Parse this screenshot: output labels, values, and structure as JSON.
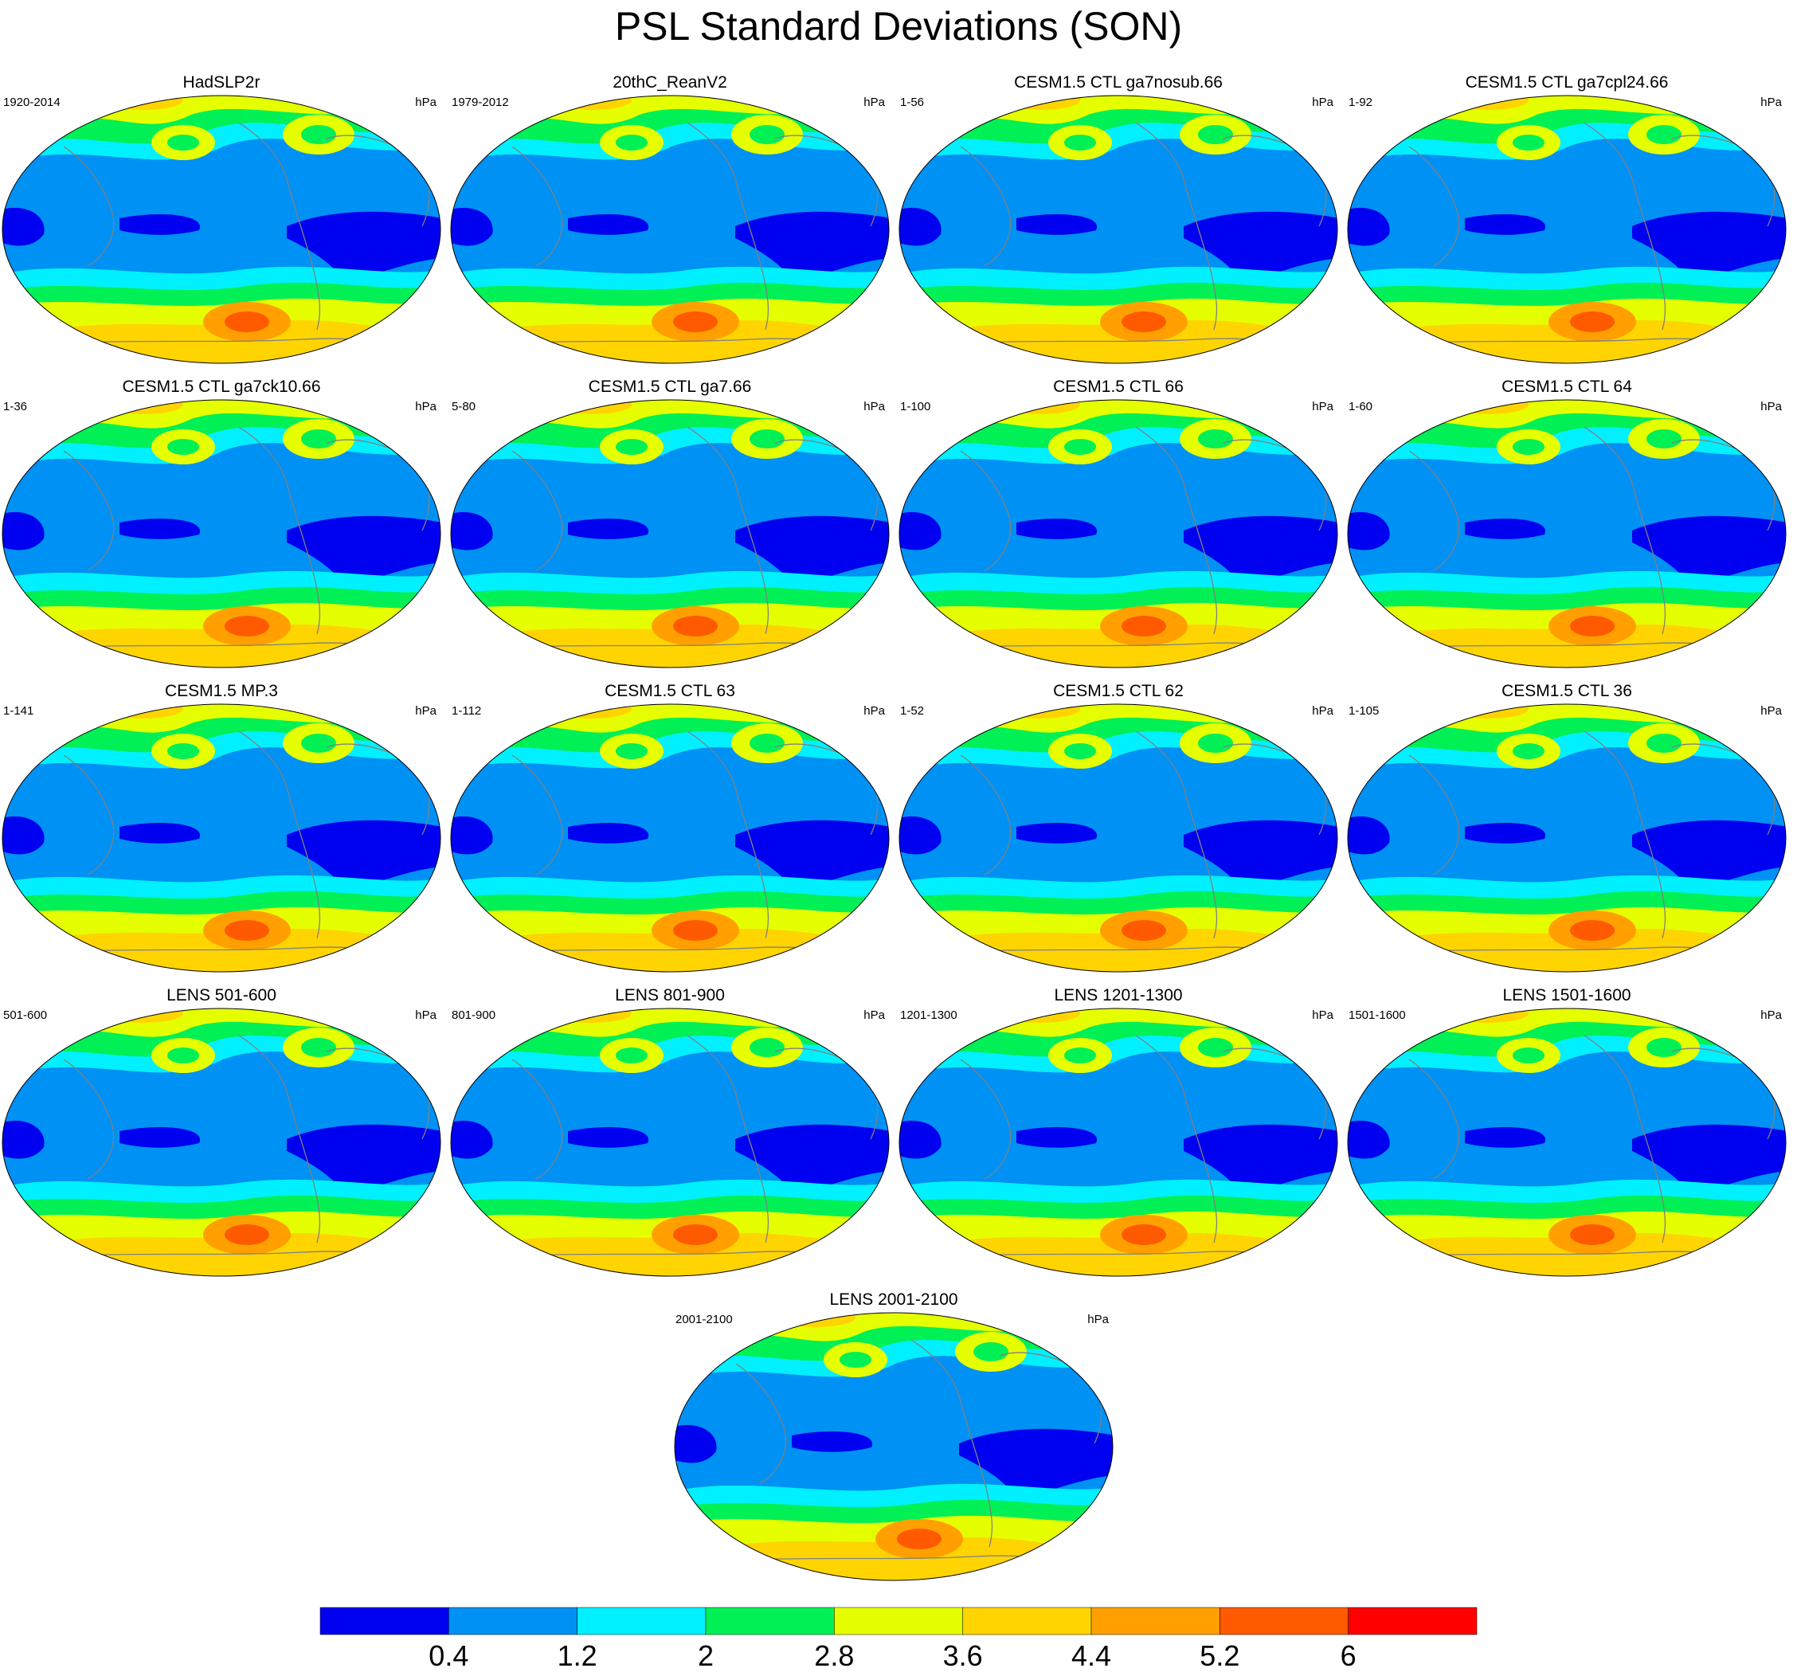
{
  "title": "PSL Standard Deviations (SON)",
  "units": "hPa",
  "panels": [
    {
      "name": "HadSLP2r",
      "years": "1920-2014"
    },
    {
      "name": "20thC_ReanV2",
      "years": "1979-2012"
    },
    {
      "name": "CESM1.5 CTL ga7nosub.66",
      "years": "1-56"
    },
    {
      "name": "CESM1.5 CTL ga7cpl24.66",
      "years": "1-92"
    },
    {
      "name": "CESM1.5 CTL ga7ck10.66",
      "years": "1-36"
    },
    {
      "name": "CESM1.5 CTL ga7.66",
      "years": "5-80"
    },
    {
      "name": "CESM1.5 CTL 66",
      "years": "1-100"
    },
    {
      "name": "CESM1.5 CTL 64",
      "years": "1-60"
    },
    {
      "name": "CESM1.5 MP.3",
      "years": "1-141"
    },
    {
      "name": "CESM1.5 CTL 63",
      "years": "1-112"
    },
    {
      "name": "CESM1.5 CTL 62",
      "years": "1-52"
    },
    {
      "name": "CESM1.5 CTL 36",
      "years": "1-105"
    },
    {
      "name": "LENS 501-600",
      "years": "501-600"
    },
    {
      "name": "LENS 801-900",
      "years": "801-900"
    },
    {
      "name": "LENS 1201-1300",
      "years": "1201-1300"
    },
    {
      "name": "LENS 1501-1600",
      "years": "1501-1600"
    },
    {
      "name": "LENS 2001-2100",
      "years": "2001-2100"
    }
  ],
  "colorbar": {
    "labels": [
      "0.4",
      "1.2",
      "2",
      "2.8",
      "3.6",
      "4.4",
      "5.2",
      "6"
    ],
    "colors": [
      "#0000f0",
      "#0091f5",
      "#00f0ff",
      "#00f055",
      "#e6ff00",
      "#ffd400",
      "#ffa000",
      "#ff5a00",
      "#ff0000"
    ]
  },
  "map_colors": {
    "ocean_low": "#0000f0",
    "base": "#0091f5",
    "band1": "#00f0ff",
    "band2": "#00f055",
    "band3": "#e6ff00",
    "band4": "#ffd400",
    "band5": "#ffa000",
    "band6": "#ff5a00",
    "coast": "#808080"
  }
}
